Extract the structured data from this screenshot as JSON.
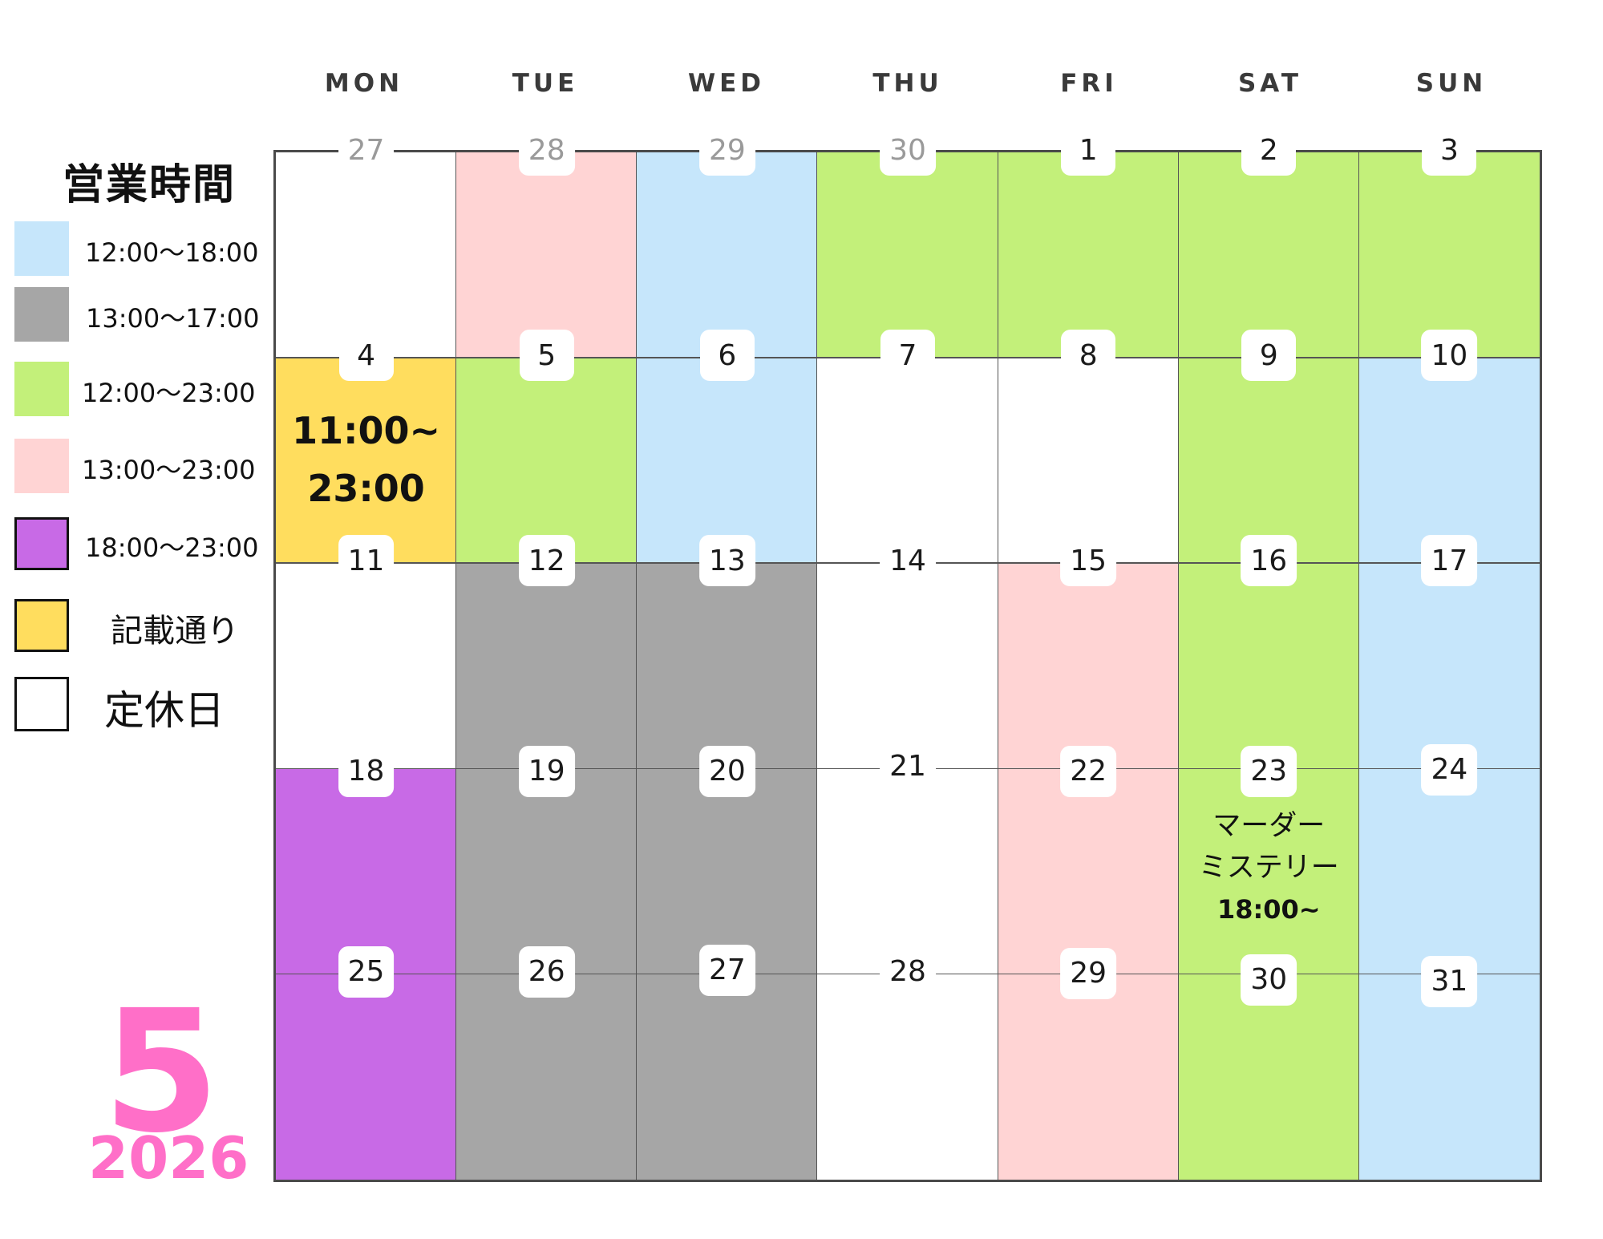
{
  "calendar": {
    "month": "5",
    "year": "2026",
    "weekdays": [
      "MON",
      "TUE",
      "WED",
      "THU",
      "FRI",
      "SAT",
      "SUN"
    ]
  },
  "legend": {
    "title": "営業時間",
    "items": [
      {
        "label": "12:00〜18:00",
        "color": "#c6e6fb",
        "key": "blue"
      },
      {
        "label": "13:00〜17:00",
        "color": "#a6a6a6",
        "key": "gray"
      },
      {
        "label": "12:00〜23:00",
        "color": "#c3f07a",
        "key": "green"
      },
      {
        "label": "13:00〜23:00",
        "color": "#ffd4d4",
        "key": "pink"
      },
      {
        "label": "18:00〜23:00",
        "color": "#c86ae6",
        "key": "purple"
      },
      {
        "label": "記載通り",
        "color": "#ffdd5e",
        "key": "yellow"
      },
      {
        "label": "定休日",
        "color": "#ffffff",
        "key": "white"
      }
    ]
  },
  "weeks": [
    [
      {
        "day": "27",
        "muted": true,
        "fill": "white"
      },
      {
        "day": "28",
        "muted": true,
        "fill": "pink"
      },
      {
        "day": "29",
        "muted": true,
        "fill": "blue"
      },
      {
        "day": "30",
        "muted": true,
        "fill": "green"
      },
      {
        "day": "1",
        "fill": "green"
      },
      {
        "day": "2",
        "fill": "green"
      },
      {
        "day": "3",
        "fill": "green"
      }
    ],
    [
      {
        "day": "4",
        "fill": "yellow"
      },
      {
        "day": "5",
        "fill": "green"
      },
      {
        "day": "6",
        "fill": "blue"
      },
      {
        "day": "7",
        "fill": "white"
      },
      {
        "day": "8",
        "fill": "white"
      },
      {
        "day": "9",
        "fill": "green"
      },
      {
        "day": "10",
        "fill": "blue"
      }
    ],
    [
      {
        "day": "11",
        "fill": "white"
      },
      {
        "day": "12",
        "fill": "gray"
      },
      {
        "day": "13",
        "fill": "gray"
      },
      {
        "day": "14",
        "fill": "white"
      },
      {
        "day": "15",
        "fill": "pink"
      },
      {
        "day": "16",
        "fill": "green"
      },
      {
        "day": "17",
        "fill": "blue"
      }
    ],
    [
      {
        "day": "18",
        "fill": "purple"
      },
      {
        "day": "19",
        "fill": "gray"
      },
      {
        "day": "20",
        "fill": "gray"
      },
      {
        "day": "21",
        "fill": "white"
      },
      {
        "day": "22",
        "fill": "pink"
      },
      {
        "day": "23",
        "fill": "green"
      },
      {
        "day": "24",
        "fill": "blue"
      }
    ],
    [
      {
        "day": "25",
        "fill": "purple"
      },
      {
        "day": "26",
        "fill": "gray"
      },
      {
        "day": "27",
        "fill": "gray"
      },
      {
        "day": "28",
        "fill": "white"
      },
      {
        "day": "29",
        "fill": "pink"
      },
      {
        "day": "30",
        "fill": "green"
      },
      {
        "day": "31",
        "fill": "blue"
      }
    ]
  ],
  "notes": {
    "may4_line1": "11:00~",
    "may4_line2": "23:00",
    "may23_line1": "マーダー",
    "may23_line2": "ミステリー",
    "may23_time": "18:00~"
  }
}
